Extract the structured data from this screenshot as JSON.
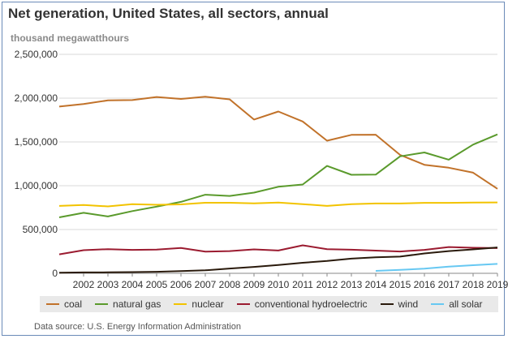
{
  "header": {
    "title": "Net generation, United States, all sectors, annual",
    "units": "thousand megawatthours"
  },
  "footer": {
    "source": "Data source: U.S. Energy Information Administration"
  },
  "chart_data": {
    "type": "line",
    "title": "Net generation, United States, all sectors, annual",
    "ylabel": "thousand megawatthours",
    "xlabel": "",
    "ylim": [
      0,
      2500000
    ],
    "yticks": [
      "0",
      "500,000",
      "1,000,000",
      "1,500,000",
      "2,000,000",
      "2,500,000"
    ],
    "x": [
      2001,
      2002,
      2003,
      2004,
      2005,
      2006,
      2007,
      2008,
      2009,
      2010,
      2011,
      2012,
      2013,
      2014,
      2015,
      2016,
      2017,
      2018,
      2019
    ],
    "xticks": [
      "2002",
      "2003",
      "2004",
      "2005",
      "2006",
      "2007",
      "2008",
      "2009",
      "2010",
      "2011",
      "2012",
      "2013",
      "2014",
      "2015",
      "2016",
      "2017",
      "2018",
      "2019"
    ],
    "grid": true,
    "legend_position": "bottom",
    "series": [
      {
        "name": "coal",
        "color": "#c1722a",
        "values": [
          1904000,
          1933000,
          1974000,
          1978000,
          2013000,
          1991000,
          2016000,
          1986000,
          1756000,
          1847000,
          1733000,
          1514000,
          1581000,
          1582000,
          1352000,
          1239000,
          1206000,
          1149000,
          965000
        ]
      },
      {
        "name": "natural gas",
        "color": "#5a9a2c",
        "values": [
          639000,
          691000,
          649000,
          710000,
          761000,
          816000,
          897000,
          883000,
          921000,
          988000,
          1014000,
          1226000,
          1125000,
          1127000,
          1335000,
          1380000,
          1297000,
          1469000,
          1586000
        ]
      },
      {
        "name": "nuclear",
        "color": "#f2c300",
        "values": [
          769000,
          780000,
          764000,
          789000,
          782000,
          787000,
          806000,
          806000,
          799000,
          807000,
          790000,
          769000,
          789000,
          797000,
          797000,
          805000,
          805000,
          807000,
          809000
        ]
      },
      {
        "name": "conventional hydroelectric",
        "color": "#9b1b30",
        "values": [
          217000,
          264000,
          276000,
          268000,
          270000,
          289000,
          247000,
          254000,
          273000,
          260000,
          319000,
          276000,
          269000,
          259000,
          249000,
          268000,
          300000,
          292000,
          288000
        ]
      },
      {
        "name": "wind",
        "color": "#2a1a0c",
        "values": [
          7000,
          10000,
          11000,
          14000,
          18000,
          26000,
          34000,
          55000,
          73000,
          95000,
          120000,
          141000,
          168000,
          182000,
          191000,
          227000,
          254000,
          273000,
          295000
        ]
      },
      {
        "name": "all solar",
        "x": [
          2014,
          2015,
          2016,
          2017,
          2018,
          2019
        ],
        "color": "#67c8f2",
        "values": [
          28000,
          39000,
          54000,
          77000,
          93000,
          107000
        ]
      }
    ]
  }
}
